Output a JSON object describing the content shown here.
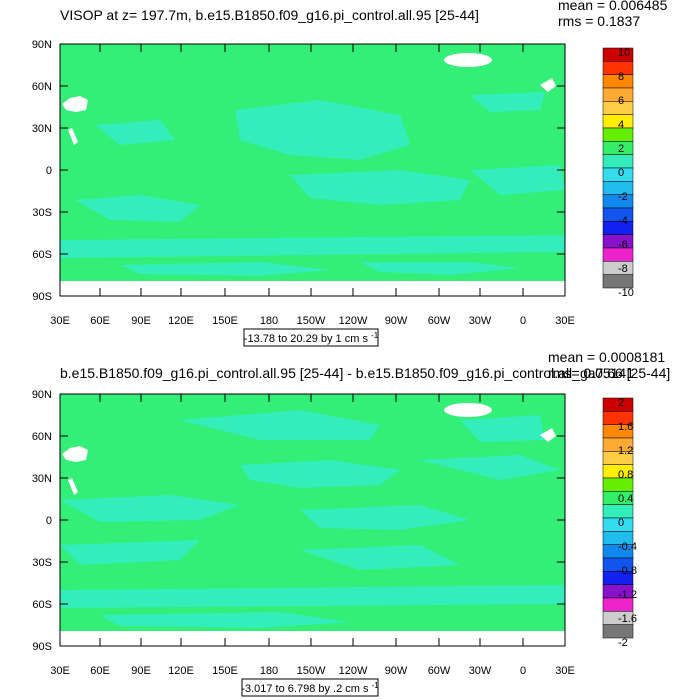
{
  "panels": [
    {
      "title": "VISOP at z= 197.7m, b.e15.B1850.f09_g16.pi_control.all.95 [25-44]",
      "mean_label": "mean = 0.006485",
      "rms_label": "rms = 0.1837",
      "latitude_ticks": [
        "90N",
        "60N",
        "30N",
        "0",
        "30S",
        "60S",
        "90S"
      ],
      "longitude_ticks": [
        "30E",
        "60E",
        "90E",
        "120E",
        "150E",
        "180",
        "150W",
        "120W",
        "90W",
        "60W",
        "30W",
        "0",
        "30E"
      ],
      "colorbar_labels": [
        "10",
        "8",
        "6",
        "4",
        "2",
        "0",
        "-2",
        "-4",
        "-6",
        "-8",
        "-10"
      ],
      "vector_ref_text": "-13.78 to 20.29 by 1 cm s",
      "vector_ref_exponent": "-1"
    },
    {
      "title": "b.e15.B1850.f09_g16.pi_control.all.95 [25-44] - b.e15.B1850.f09_g16.pi_control.all_ga7.66 [25-44]",
      "mean_label": "mean = 0.0008181",
      "rms_label": "rms= 0.05141",
      "latitude_ticks": [
        "90N",
        "60N",
        "30N",
        "0",
        "30S",
        "60S",
        "90S"
      ],
      "longitude_ticks": [
        "30E",
        "60E",
        "90E",
        "120E",
        "150E",
        "180",
        "150W",
        "120W",
        "90W",
        "60W",
        "30W",
        "0",
        "30E"
      ],
      "colorbar_labels": [
        "2",
        "1.6",
        "1.2",
        "0.8",
        "0.4",
        "0",
        "-0.4",
        "-0.8",
        "-1.2",
        "-1.6",
        "-2"
      ],
      "vector_ref_text": "-3.017 to 6.798 by .2 cm s",
      "vector_ref_exponent": "-1"
    }
  ],
  "colors": {
    "ocean_main": "#33ee77",
    "ocean_alt": "#33eebb",
    "land": "#ffffff",
    "colorbar": [
      "#cc0000",
      "#ff3300",
      "#ff8800",
      "#ffaa33",
      "#ffcc44",
      "#ffee00",
      "#66ee00",
      "#33ee66",
      "#33eebb",
      "#33ddee",
      "#22bbee",
      "#1188ee",
      "#1155ee",
      "#1122ee",
      "#8811cc",
      "#ee22cc",
      "#cccccc",
      "#777777"
    ]
  }
}
